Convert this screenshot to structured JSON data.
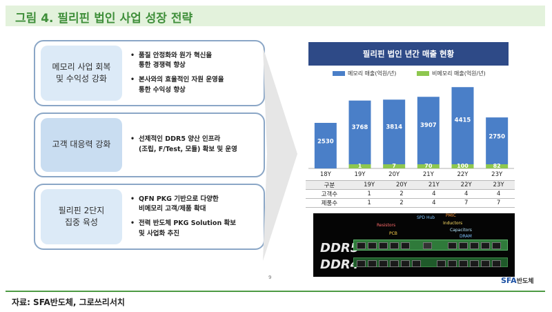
{
  "title": "그림 4. 필리핀 법인 사업 성장 전략",
  "panels": [
    {
      "label": "메모리 사업 회복\n및 수익성 강화",
      "bullets": [
        "품질 안정화와 원가 혁신을\n통한 경쟁력 향상",
        "본사와의 효율적인 자원 운영을\n통한 수익성 향상"
      ]
    },
    {
      "label": "고객 대응력 강화",
      "bullets": [
        "선제적인 DDR5 양산 인프라\n(조립, F/Test, 모듈) 확보 및 운영"
      ]
    },
    {
      "label": "필리핀 2단지\n집중 육성",
      "bullets": [
        "QFN PKG 기반으로 다양한\n비메모리 고객/제품 확대",
        "전력 반도체 PKG Solution 확보\n및 사업화 추진"
      ]
    }
  ],
  "chart_header": "필리핀 법인 년간 매출 현황",
  "colors": {
    "memory": "#4a7fc8",
    "non_memory": "#8ec74f",
    "title_green": "#3f8f3a",
    "header_navy": "#2e4a87"
  },
  "chart_data": {
    "type": "bar",
    "stacked": true,
    "categories": [
      "18Y",
      "19Y",
      "20Y",
      "21Y",
      "22Y",
      "23Y"
    ],
    "series": [
      {
        "name": "메모리 매출(억원/년)",
        "values": [
          2530,
          3768,
          3814,
          3907,
          4415,
          2750
        ]
      },
      {
        "name": "비메모리 매출(억원/년)",
        "values": [
          0,
          1,
          7,
          70,
          100,
          82
        ]
      }
    ],
    "bar_labels": {
      "memory": [
        "2530",
        "3768",
        "3814",
        "3907",
        "4415",
        "2750"
      ],
      "non_memory": [
        "",
        "1",
        "7",
        "70",
        "100",
        "82"
      ]
    },
    "legend_position": "top",
    "grid": false
  },
  "table": {
    "header": [
      "구분",
      "19Y",
      "20Y",
      "21Y",
      "22Y",
      "23Y"
    ],
    "rows": [
      [
        "고객수",
        "1",
        "2",
        "4",
        "4",
        "4"
      ],
      [
        "제품수",
        "1",
        "2",
        "4",
        "7",
        "7"
      ]
    ]
  },
  "board": {
    "labels": [
      "SPD Hub",
      "PMIC",
      "Resistors",
      "Inductors",
      "PCB",
      "Capacitors",
      "DRAM"
    ],
    "ddr5": "DDR5",
    "ddr4": "DDR4"
  },
  "page_number": "9",
  "logo": {
    "brand": "SFA",
    "suffix": "반도체"
  },
  "source": "자료: SFA반도체, 그로쓰리서치"
}
